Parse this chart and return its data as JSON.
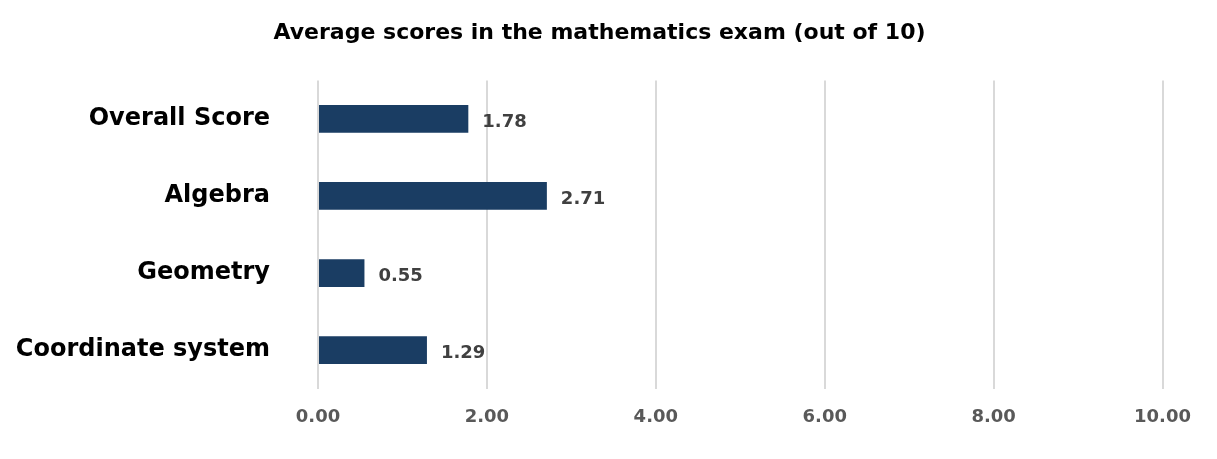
{
  "chart_data": {
    "type": "bar",
    "orientation": "horizontal",
    "title": "Average scores in the mathematics exam (out of 10)",
    "categories": [
      "Overall Score",
      "Algebra",
      "Geometry",
      "Coordinate system"
    ],
    "values": [
      1.78,
      2.71,
      0.55,
      1.29
    ],
    "color": "#1a3d63",
    "xlim": [
      0,
      10
    ],
    "xticks": [
      {
        "value": 0,
        "label": "0.00"
      },
      {
        "value": 2,
        "label": "2.00"
      },
      {
        "value": 4,
        "label": "4.00"
      },
      {
        "value": 6,
        "label": "6.00"
      },
      {
        "value": 8,
        "label": "8.00"
      },
      {
        "value": 10,
        "label": "10.00"
      }
    ],
    "grid": "x",
    "legend": false,
    "data_labels": true
  }
}
